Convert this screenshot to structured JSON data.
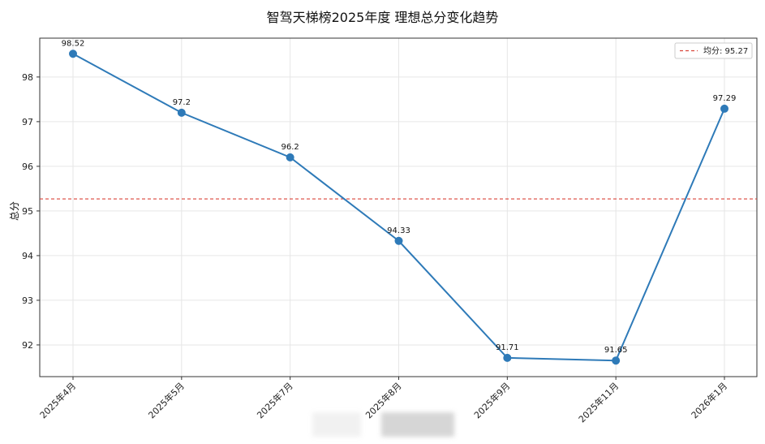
{
  "chart_data": {
    "type": "line",
    "title": "智驾天梯榜2025年度 理想总分变化趋势",
    "xlabel": "",
    "ylabel": "总分",
    "categories": [
      "2025年4月",
      "2025年5月",
      "2025年7月",
      "2025年8月",
      "2025年9月",
      "2025年11月",
      "2026年1月"
    ],
    "series": [
      {
        "name": "理想总分",
        "values": [
          98.52,
          97.2,
          96.2,
          94.33,
          91.71,
          91.65,
          97.29
        ],
        "color": "#2e7ab8",
        "marker": "circle"
      }
    ],
    "data_labels": [
      "98.52",
      "97.2",
      "96.2",
      "94.33",
      "91.71",
      "91.65",
      "97.29"
    ],
    "reference_line": {
      "label": "均分: 95.27",
      "value": 95.27,
      "color": "#d9453a",
      "style": "dashed"
    },
    "yticks": [
      92,
      93,
      94,
      95,
      96,
      97,
      98
    ],
    "ylim": [
      91.29,
      98.87
    ],
    "grid": true,
    "legend_position": "upper right"
  }
}
